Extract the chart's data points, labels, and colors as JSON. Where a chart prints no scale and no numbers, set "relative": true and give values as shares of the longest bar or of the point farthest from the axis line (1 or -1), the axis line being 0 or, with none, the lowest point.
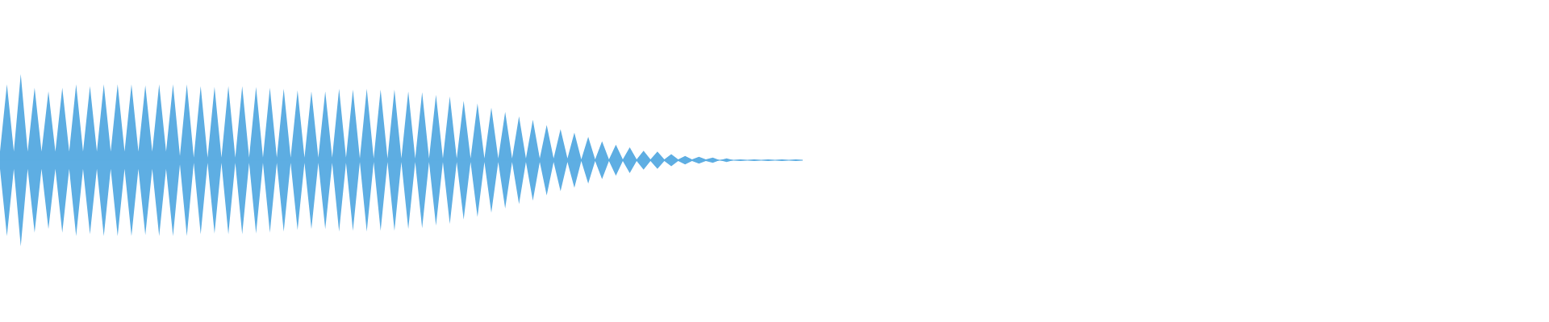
{
  "chart_data": {
    "type": "area",
    "relative": true,
    "ref_lines": [
      {
        "axis": "y",
        "value": 0,
        "color": "#5dade2"
      }
    ],
    "categories": [
      null,
      null,
      null,
      null,
      null,
      null,
      null,
      null,
      null,
      null,
      null,
      null,
      null,
      null,
      null,
      null,
      null,
      null,
      null,
      null,
      null,
      null,
      null,
      null,
      null,
      null,
      null,
      null,
      null,
      null,
      null,
      null,
      null,
      null,
      null,
      null,
      null,
      null,
      null,
      null,
      null,
      null,
      null,
      null,
      null,
      null,
      null,
      null,
      null,
      null,
      null,
      null,
      null,
      null,
      null,
      null,
      null,
      null,
      null,
      null,
      null,
      null,
      null,
      null,
      null,
      null,
      null,
      null,
      null,
      null,
      null,
      null,
      null,
      null,
      null,
      null,
      null,
      null,
      null,
      null,
      null,
      null,
      null,
      null,
      null,
      null,
      null,
      null,
      null,
      null,
      null,
      null,
      null,
      null,
      null,
      null,
      null,
      null,
      null,
      null,
      null,
      null,
      null,
      null,
      null,
      null,
      null,
      null,
      null,
      null,
      null,
      null,
      null,
      null,
      null,
      null,
      null
    ],
    "series": [
      {
        "color": "#5dade2",
        "values": [
          0.1,
          0.88,
          0.1,
          1.0,
          0.1,
          0.84,
          0.1,
          0.8,
          0.1,
          0.84,
          0.1,
          0.88,
          0.1,
          0.86,
          0.1,
          0.88,
          0.1,
          0.88,
          0.1,
          0.88,
          0.1,
          0.87,
          0.1,
          0.88,
          0.1,
          0.88,
          0.05,
          0.88,
          0.03,
          0.86,
          0.03,
          0.85,
          0.03,
          0.86,
          0.03,
          0.86,
          0.03,
          0.85,
          0.03,
          0.84,
          0.03,
          0.83,
          0.03,
          0.81,
          0.03,
          0.8,
          0.03,
          0.8,
          0.03,
          0.83,
          0.03,
          0.82,
          0.02,
          0.83,
          0.02,
          0.82,
          0.02,
          0.82,
          0.02,
          0.8,
          0.02,
          0.79,
          0.02,
          0.76,
          0.02,
          0.74,
          0.02,
          0.69,
          0.02,
          0.66,
          0.02,
          0.61,
          0.02,
          0.56,
          0.02,
          0.51,
          0.02,
          0.47,
          0.02,
          0.41,
          0.02,
          0.36,
          0.02,
          0.32,
          0.01,
          0.27,
          0.01,
          0.22,
          0.01,
          0.18,
          0.01,
          0.15,
          0.01,
          0.11,
          0.01,
          0.1,
          0.01,
          0.07,
          0.01,
          0.05,
          0.01,
          0.04,
          0.01,
          0.03,
          0,
          0.02,
          0,
          0.01,
          0,
          0.01,
          0,
          0.01,
          0,
          0.01,
          0,
          0.01,
          0
        ]
      },
      {
        "color": "#5eaee3",
        "values": [
          -0.1,
          -0.88,
          -0.1,
          -1.0,
          -0.1,
          -0.84,
          -0.1,
          -0.8,
          -0.1,
          -0.84,
          -0.1,
          -0.88,
          -0.1,
          -0.86,
          -0.1,
          -0.88,
          -0.1,
          -0.88,
          -0.1,
          -0.88,
          -0.1,
          -0.87,
          -0.1,
          -0.88,
          -0.1,
          -0.88,
          -0.05,
          -0.88,
          -0.03,
          -0.86,
          -0.03,
          -0.85,
          -0.03,
          -0.86,
          -0.03,
          -0.86,
          -0.03,
          -0.85,
          -0.03,
          -0.84,
          -0.03,
          -0.83,
          -0.03,
          -0.81,
          -0.03,
          -0.8,
          -0.03,
          -0.8,
          -0.03,
          -0.83,
          -0.03,
          -0.82,
          -0.02,
          -0.83,
          -0.02,
          -0.82,
          -0.02,
          -0.82,
          -0.02,
          -0.8,
          -0.02,
          -0.79,
          -0.02,
          -0.76,
          -0.02,
          -0.74,
          -0.02,
          -0.69,
          -0.02,
          -0.66,
          -0.02,
          -0.61,
          -0.02,
          -0.56,
          -0.02,
          -0.51,
          -0.02,
          -0.47,
          -0.02,
          -0.41,
          -0.02,
          -0.36,
          -0.02,
          -0.32,
          -0.01,
          -0.27,
          -0.01,
          -0.22,
          -0.01,
          -0.18,
          -0.01,
          -0.15,
          -0.01,
          -0.11,
          -0.01,
          -0.1,
          -0.01,
          -0.07,
          -0.01,
          -0.05,
          -0.01,
          -0.04,
          -0.01,
          -0.03,
          0,
          -0.02,
          0,
          -0.01,
          0,
          -0.01,
          0,
          -0.01,
          0,
          -0.01,
          0,
          -0.01,
          0
        ]
      }
    ]
  }
}
